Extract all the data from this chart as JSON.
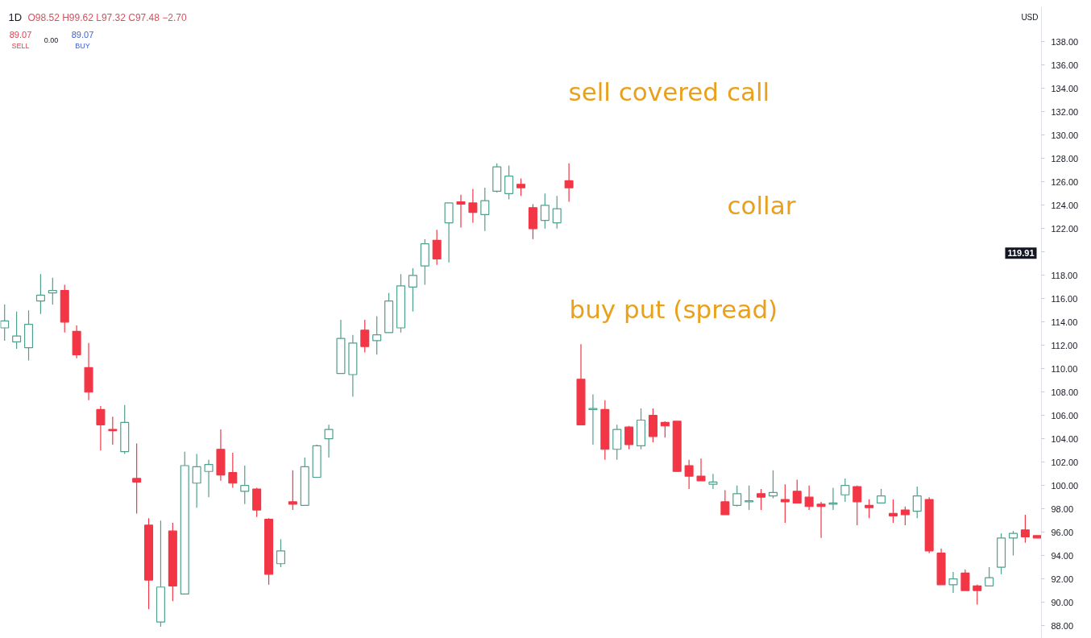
{
  "chart_data": {
    "type": "candlestick",
    "title": "1D",
    "ylabel": "USD",
    "categories": [
      null,
      null,
      null,
      null,
      null,
      null,
      null,
      null,
      null,
      null,
      null,
      null,
      null,
      null,
      null,
      null,
      null,
      null,
      null,
      null,
      null,
      null,
      null,
      null,
      null,
      null,
      null,
      null,
      null,
      null,
      null,
      null,
      null,
      null,
      null,
      null,
      null,
      null,
      null,
      null,
      null,
      null,
      null,
      null,
      null,
      null,
      null,
      null,
      null,
      null,
      null,
      null,
      null,
      null,
      null,
      null,
      null,
      null,
      null,
      null,
      null,
      null,
      null,
      null,
      null,
      null,
      null,
      null,
      null,
      null,
      null,
      null,
      null,
      null,
      null,
      null,
      null,
      null,
      null,
      null,
      null,
      null,
      null,
      null,
      null,
      null,
      null
    ],
    "ohlc": [
      [
        113.5,
        115.5,
        112.4,
        114.1
      ],
      [
        112.3,
        114.9,
        111.7,
        112.8
      ],
      [
        111.8,
        115.0,
        110.7,
        113.8
      ],
      [
        115.8,
        118.1,
        114.7,
        116.3
      ],
      [
        116.5,
        117.8,
        115.5,
        116.7
      ],
      [
        116.7,
        117.2,
        113.1,
        114.0
      ],
      [
        113.2,
        113.7,
        110.9,
        111.2
      ],
      [
        110.1,
        112.2,
        107.3,
        108.0
      ],
      [
        106.5,
        106.8,
        103.0,
        105.2
      ],
      [
        104.8,
        105.9,
        103.5,
        104.7
      ],
      [
        102.9,
        106.9,
        102.7,
        105.4
      ],
      [
        100.6,
        103.6,
        97.6,
        100.3
      ],
      [
        96.6,
        97.2,
        89.4,
        91.9
      ],
      [
        88.3,
        97.0,
        87.9,
        91.3
      ],
      [
        96.1,
        96.8,
        90.1,
        91.4
      ],
      [
        90.7,
        102.9,
        90.7,
        101.7
      ],
      [
        100.2,
        102.7,
        98.1,
        101.6
      ],
      [
        101.2,
        102.2,
        99.0,
        101.8
      ],
      [
        103.1,
        104.8,
        100.4,
        100.9
      ],
      [
        101.1,
        102.8,
        99.8,
        100.2
      ],
      [
        99.5,
        101.7,
        98.4,
        100.0
      ],
      [
        99.7,
        99.8,
        97.3,
        97.9
      ],
      [
        97.1,
        97.2,
        91.5,
        92.4
      ],
      [
        93.3,
        95.4,
        93.0,
        94.4
      ],
      [
        98.6,
        101.3,
        97.9,
        98.4
      ],
      [
        98.3,
        102.4,
        98.3,
        101.6
      ],
      [
        100.7,
        103.5,
        100.7,
        103.4
      ],
      [
        104.0,
        105.2,
        102.4,
        104.8
      ],
      [
        109.6,
        114.2,
        109.6,
        112.6
      ],
      [
        109.5,
        112.9,
        107.6,
        112.2
      ],
      [
        113.3,
        114.2,
        111.4,
        111.9
      ],
      [
        112.4,
        114.5,
        111.2,
        112.9
      ],
      [
        113.1,
        116.5,
        113.1,
        115.8
      ],
      [
        113.5,
        118.1,
        113.1,
        117.1
      ],
      [
        117.0,
        118.6,
        114.9,
        118.0
      ],
      [
        118.8,
        121.1,
        117.2,
        120.7
      ],
      [
        121.0,
        121.9,
        118.9,
        119.4
      ],
      [
        122.5,
        124.2,
        119.1,
        124.2
      ],
      [
        124.3,
        124.9,
        122.1,
        124.1
      ],
      [
        124.2,
        125.4,
        122.5,
        123.4
      ],
      [
        123.2,
        125.5,
        121.8,
        124.4
      ],
      [
        125.2,
        127.6,
        125.1,
        127.3
      ],
      [
        125.0,
        127.4,
        124.5,
        126.5
      ],
      [
        125.8,
        126.3,
        124.8,
        125.5
      ],
      [
        123.8,
        124.1,
        121.1,
        122.0
      ],
      [
        122.7,
        125.0,
        122.0,
        124.0
      ],
      [
        122.5,
        124.8,
        122.0,
        123.7
      ],
      [
        126.1,
        127.6,
        124.3,
        125.5
      ],
      [
        109.1,
        112.1,
        105.2,
        105.2
      ],
      [
        106.5,
        107.8,
        103.5,
        106.6
      ],
      [
        106.5,
        107.3,
        102.2,
        103.1
      ],
      [
        103.1,
        105.2,
        102.2,
        104.8
      ],
      [
        105.0,
        105.1,
        103.1,
        103.5
      ],
      [
        103.4,
        106.6,
        103.1,
        105.6
      ],
      [
        106.0,
        106.6,
        103.7,
        104.2
      ],
      [
        105.4,
        105.5,
        104.1,
        105.1
      ],
      [
        105.5,
        105.5,
        101.2,
        101.2
      ],
      [
        101.7,
        102.2,
        99.7,
        100.8
      ],
      [
        100.8,
        102.3,
        100.4,
        100.4
      ],
      [
        100.1,
        101.0,
        99.7,
        100.3
      ],
      [
        98.6,
        99.6,
        97.5,
        97.5
      ],
      [
        98.3,
        100.0,
        98.2,
        99.3
      ],
      [
        98.6,
        100.0,
        97.9,
        98.7
      ],
      [
        99.3,
        99.7,
        97.9,
        99.0
      ],
      [
        99.1,
        101.3,
        98.9,
        99.4
      ],
      [
        98.8,
        100.1,
        96.8,
        98.6
      ],
      [
        99.5,
        100.5,
        98.5,
        98.5
      ],
      [
        99.0,
        100.0,
        97.9,
        98.2
      ],
      [
        98.4,
        98.6,
        95.5,
        98.2
      ],
      [
        98.4,
        99.8,
        97.9,
        98.5
      ],
      [
        99.2,
        100.6,
        98.6,
        100.0
      ],
      [
        99.9,
        100.0,
        96.6,
        98.6
      ],
      [
        98.3,
        98.8,
        97.2,
        98.1
      ],
      [
        98.5,
        99.7,
        98.5,
        99.1
      ],
      [
        97.6,
        98.8,
        96.8,
        97.4
      ],
      [
        97.9,
        98.2,
        96.6,
        97.5
      ],
      [
        97.8,
        99.9,
        97.2,
        99.1
      ],
      [
        98.8,
        99.0,
        94.2,
        94.4
      ],
      [
        94.2,
        94.6,
        91.5,
        91.5
      ],
      [
        91.5,
        92.6,
        90.8,
        92.0
      ],
      [
        92.5,
        92.8,
        91.0,
        91.0
      ],
      [
        91.4,
        91.5,
        89.8,
        91.0
      ],
      [
        91.4,
        93.0,
        91.4,
        92.1
      ],
      [
        93.0,
        95.9,
        92.4,
        95.5
      ],
      [
        95.5,
        96.1,
        94.0,
        95.9
      ],
      [
        96.2,
        97.5,
        95.1,
        95.6
      ],
      [
        95.7,
        95.7,
        95.5,
        95.5
      ]
    ],
    "colors": [
      "#4fa08d",
      "#4fa08d",
      "#4fa08d",
      "#4fa08d",
      "#4fa08d",
      "#f23645",
      "#f23645",
      "#f23645",
      "#f23645",
      "#f23645",
      "#4fa08d",
      "#f23645",
      "#f23645",
      "#4fa08d",
      "#f23645",
      "#4fa08d",
      "#4fa08d",
      "#4fa08d",
      "#f23645",
      "#f23645",
      "#4fa08d",
      "#f23645",
      "#f23645",
      "#4fa08d",
      "#f23645",
      "#4fa08d",
      "#4fa08d",
      "#4fa08d",
      "#4fa08d",
      "#4fa08d",
      "#f23645",
      "#4fa08d",
      "#4fa08d",
      "#4fa08d",
      "#4fa08d",
      "#4fa08d",
      "#f23645",
      "#4fa08d",
      "#f23645",
      "#f23645",
      "#4fa08d",
      "#4fa08d",
      "#4fa08d",
      "#f23645",
      "#f23645",
      "#4fa08d",
      "#4fa08d",
      "#f23645",
      "#f23645",
      "#4fa08d",
      "#f23645",
      "#4fa08d",
      "#f23645",
      "#4fa08d",
      "#f23645",
      "#f23645",
      "#f23645",
      "#f23645",
      "#f23645",
      "#4fa08d",
      "#f23645",
      "#4fa08d",
      "#4fa08d",
      "#f23645",
      "#4fa08d",
      "#f23645",
      "#f23645",
      "#f23645",
      "#f23645",
      "#4fa08d",
      "#4fa08d",
      "#f23645",
      "#f23645",
      "#4fa08d",
      "#f23645",
      "#f23645",
      "#4fa08d",
      "#f23645",
      "#f23645",
      "#4fa08d",
      "#f23645",
      "#f23645",
      "#4fa08d",
      "#4fa08d",
      "#4fa08d",
      "#f23645",
      "#f23645"
    ],
    "ylim": [
      86.9,
      141.0
    ],
    "yticks": [
      {
        "value": 88,
        "label": "88.00"
      },
      {
        "value": 90,
        "label": "90.00"
      },
      {
        "value": 92,
        "label": "92.00"
      },
      {
        "value": 94,
        "label": "94.00"
      },
      {
        "value": 96,
        "label": "96.00"
      },
      {
        "value": 98,
        "label": "98.00"
      },
      {
        "value": 100,
        "label": "100.00"
      },
      {
        "value": 102,
        "label": "102.00"
      },
      {
        "value": 104,
        "label": "104.00"
      },
      {
        "value": 106,
        "label": "106.00"
      },
      {
        "value": 108,
        "label": "108.00"
      },
      {
        "value": 110,
        "label": "110.00"
      },
      {
        "value": 112,
        "label": "112.00"
      },
      {
        "value": 114,
        "label": "114.00"
      },
      {
        "value": 116,
        "label": "116.00"
      },
      {
        "value": 118,
        "label": "118.00"
      },
      {
        "value": 120,
        "label": null
      },
      {
        "value": 122,
        "label": "122.00"
      },
      {
        "value": 124,
        "label": "124.00"
      },
      {
        "value": 126,
        "label": "126.00"
      },
      {
        "value": 128,
        "label": "128.00"
      },
      {
        "value": 130,
        "label": "130.00"
      },
      {
        "value": 132,
        "label": "132.00"
      },
      {
        "value": 134,
        "label": "134.00"
      },
      {
        "value": 136,
        "label": "136.00"
      },
      {
        "value": 138,
        "label": "138.00"
      }
    ],
    "annotations": [
      "O98.52 H99.62 L97.32 C97.48 −2.70",
      "89.07",
      "SELL",
      "0.00",
      "89.07",
      "BUY",
      {
        "text": "119.91",
        "y": 119.91
      },
      "sell covered call",
      "collar",
      "buy put (spread)"
    ]
  }
}
